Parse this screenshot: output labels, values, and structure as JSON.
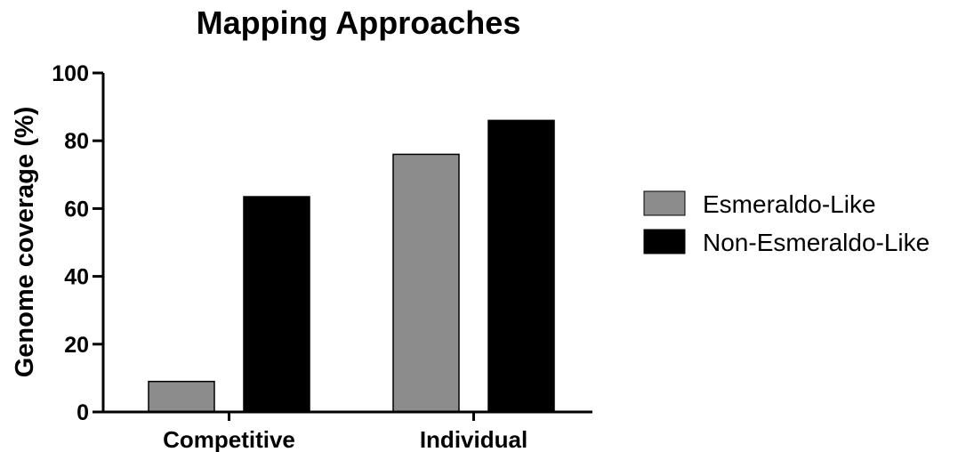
{
  "chart_data": {
    "type": "bar",
    "title": "Mapping Approaches",
    "xlabel": "",
    "ylabel": "Genome coverage (%)",
    "categories": [
      "Competitive",
      "Individual"
    ],
    "series": [
      {
        "name": "Esmeraldo-Like",
        "color": "#8c8c8c",
        "values": [
          9,
          76
        ]
      },
      {
        "name": "Non-Esmeraldo-Like",
        "color": "#000000",
        "values": [
          63.5,
          86
        ]
      }
    ],
    "ylim": [
      0,
      100
    ],
    "yticks": [
      "0",
      "20",
      "40",
      "60",
      "80",
      "100"
    ],
    "grid": false,
    "legend_position": "right"
  }
}
